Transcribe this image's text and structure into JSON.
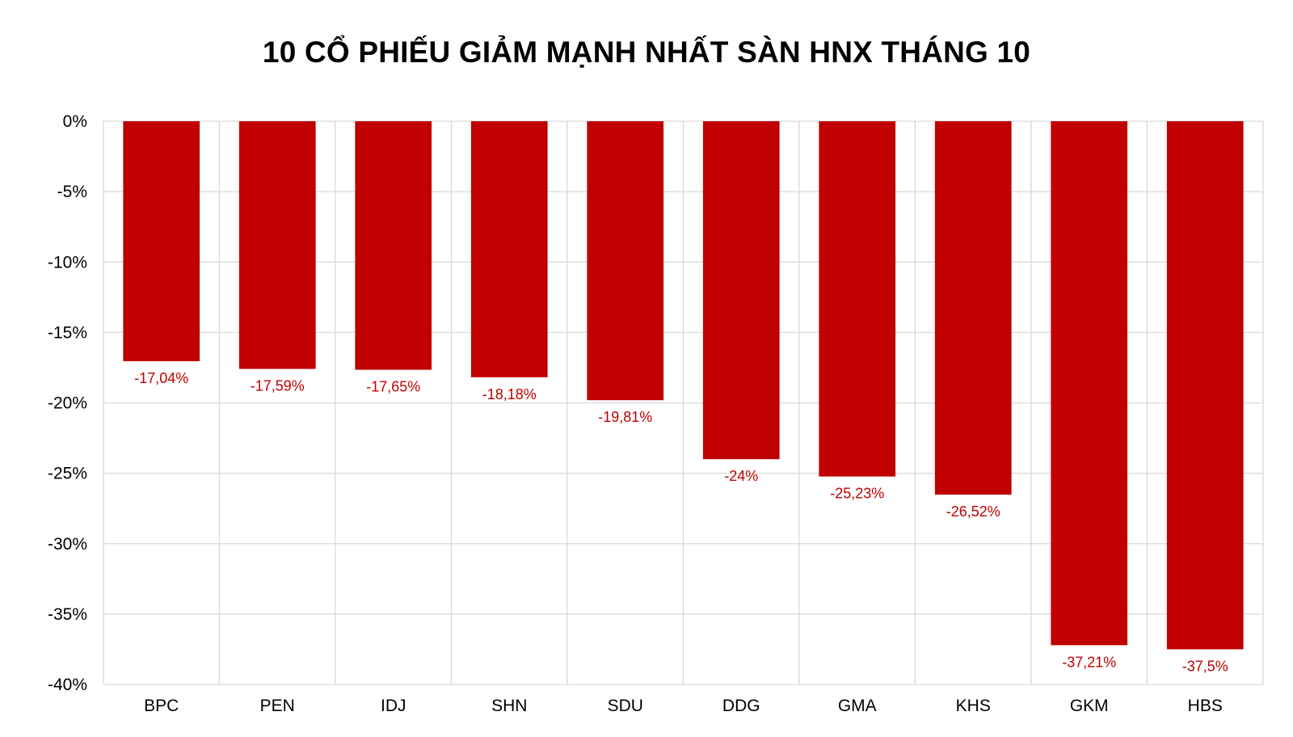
{
  "chart_data": {
    "type": "bar",
    "title": "10 CỔ PHIẾU GIẢM MẠNH NHẤT SÀN HNX THÁNG 10",
    "categories": [
      "BPC",
      "PEN",
      "IDJ",
      "SHN",
      "SDU",
      "DDG",
      "GMA",
      "KHS",
      "GKM",
      "HBS"
    ],
    "values": [
      -17.04,
      -17.59,
      -17.65,
      -18.18,
      -19.81,
      -24,
      -25.23,
      -26.52,
      -37.21,
      -37.5
    ],
    "data_labels": [
      "-17,04%",
      "-17,59%",
      "-17,65%",
      "-18,18%",
      "-19,81%",
      "-24%",
      "-25,23%",
      "-26,52%",
      "-37,21%",
      "-37,5%"
    ],
    "yticks": [
      0,
      -5,
      -10,
      -15,
      -20,
      -25,
      -30,
      -35,
      -40
    ],
    "ytick_labels": [
      "0%",
      "-5%",
      "-10%",
      "-15%",
      "-20%",
      "-25%",
      "-30%",
      "-35%",
      "-40%"
    ],
    "ylim": [
      -40,
      0
    ],
    "xlabel": "",
    "ylabel": "",
    "grid": true,
    "legend": "none",
    "colors": {
      "bar": "#c00000",
      "data_label": "#c00000",
      "grid": "#d9d9d9",
      "text": "#000000"
    }
  }
}
